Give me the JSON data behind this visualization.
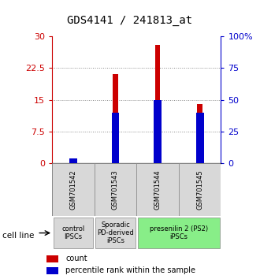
{
  "title": "GDS4141 / 241813_at",
  "samples": [
    "GSM701542",
    "GSM701543",
    "GSM701544",
    "GSM701545"
  ],
  "counts": [
    0.5,
    21.0,
    28.0,
    14.0
  ],
  "percentiles": [
    3.5,
    40.0,
    50.0,
    40.0
  ],
  "ylim_left": [
    0,
    30
  ],
  "ylim_right": [
    0,
    100
  ],
  "yticks_left": [
    0,
    7.5,
    15,
    22.5,
    30
  ],
  "yticks_right": [
    0,
    25,
    50,
    75,
    100
  ],
  "yticklabels_left": [
    "0",
    "7.5",
    "15",
    "22.5",
    "30"
  ],
  "yticklabels_right": [
    "0",
    "25",
    "50",
    "75",
    "100%"
  ],
  "count_color": "#cc0000",
  "percentile_color": "#0000cc",
  "grid_color": "#888888",
  "bg_color": "#ffffff",
  "cell_line_groups": [
    {
      "label": "control\nIPSCs",
      "span": [
        0,
        1
      ],
      "color": "#d8d8d8"
    },
    {
      "label": "Sporadic\nPD-derived\niPSCs",
      "span": [
        1,
        2
      ],
      "color": "#d8d8d8"
    },
    {
      "label": "presenilin 2 (PS2)\niPSCs",
      "span": [
        2,
        4
      ],
      "color": "#88ee88"
    }
  ],
  "legend_count_label": "count",
  "legend_percentile_label": "percentile rank within the sample",
  "cell_line_label": "cell line",
  "title_fontsize": 10,
  "tick_fontsize": 8,
  "sample_fontsize": 6,
  "group_fontsize": 6,
  "legend_fontsize": 7,
  "bar_width": 0.12,
  "percentile_bar_width": 0.18
}
